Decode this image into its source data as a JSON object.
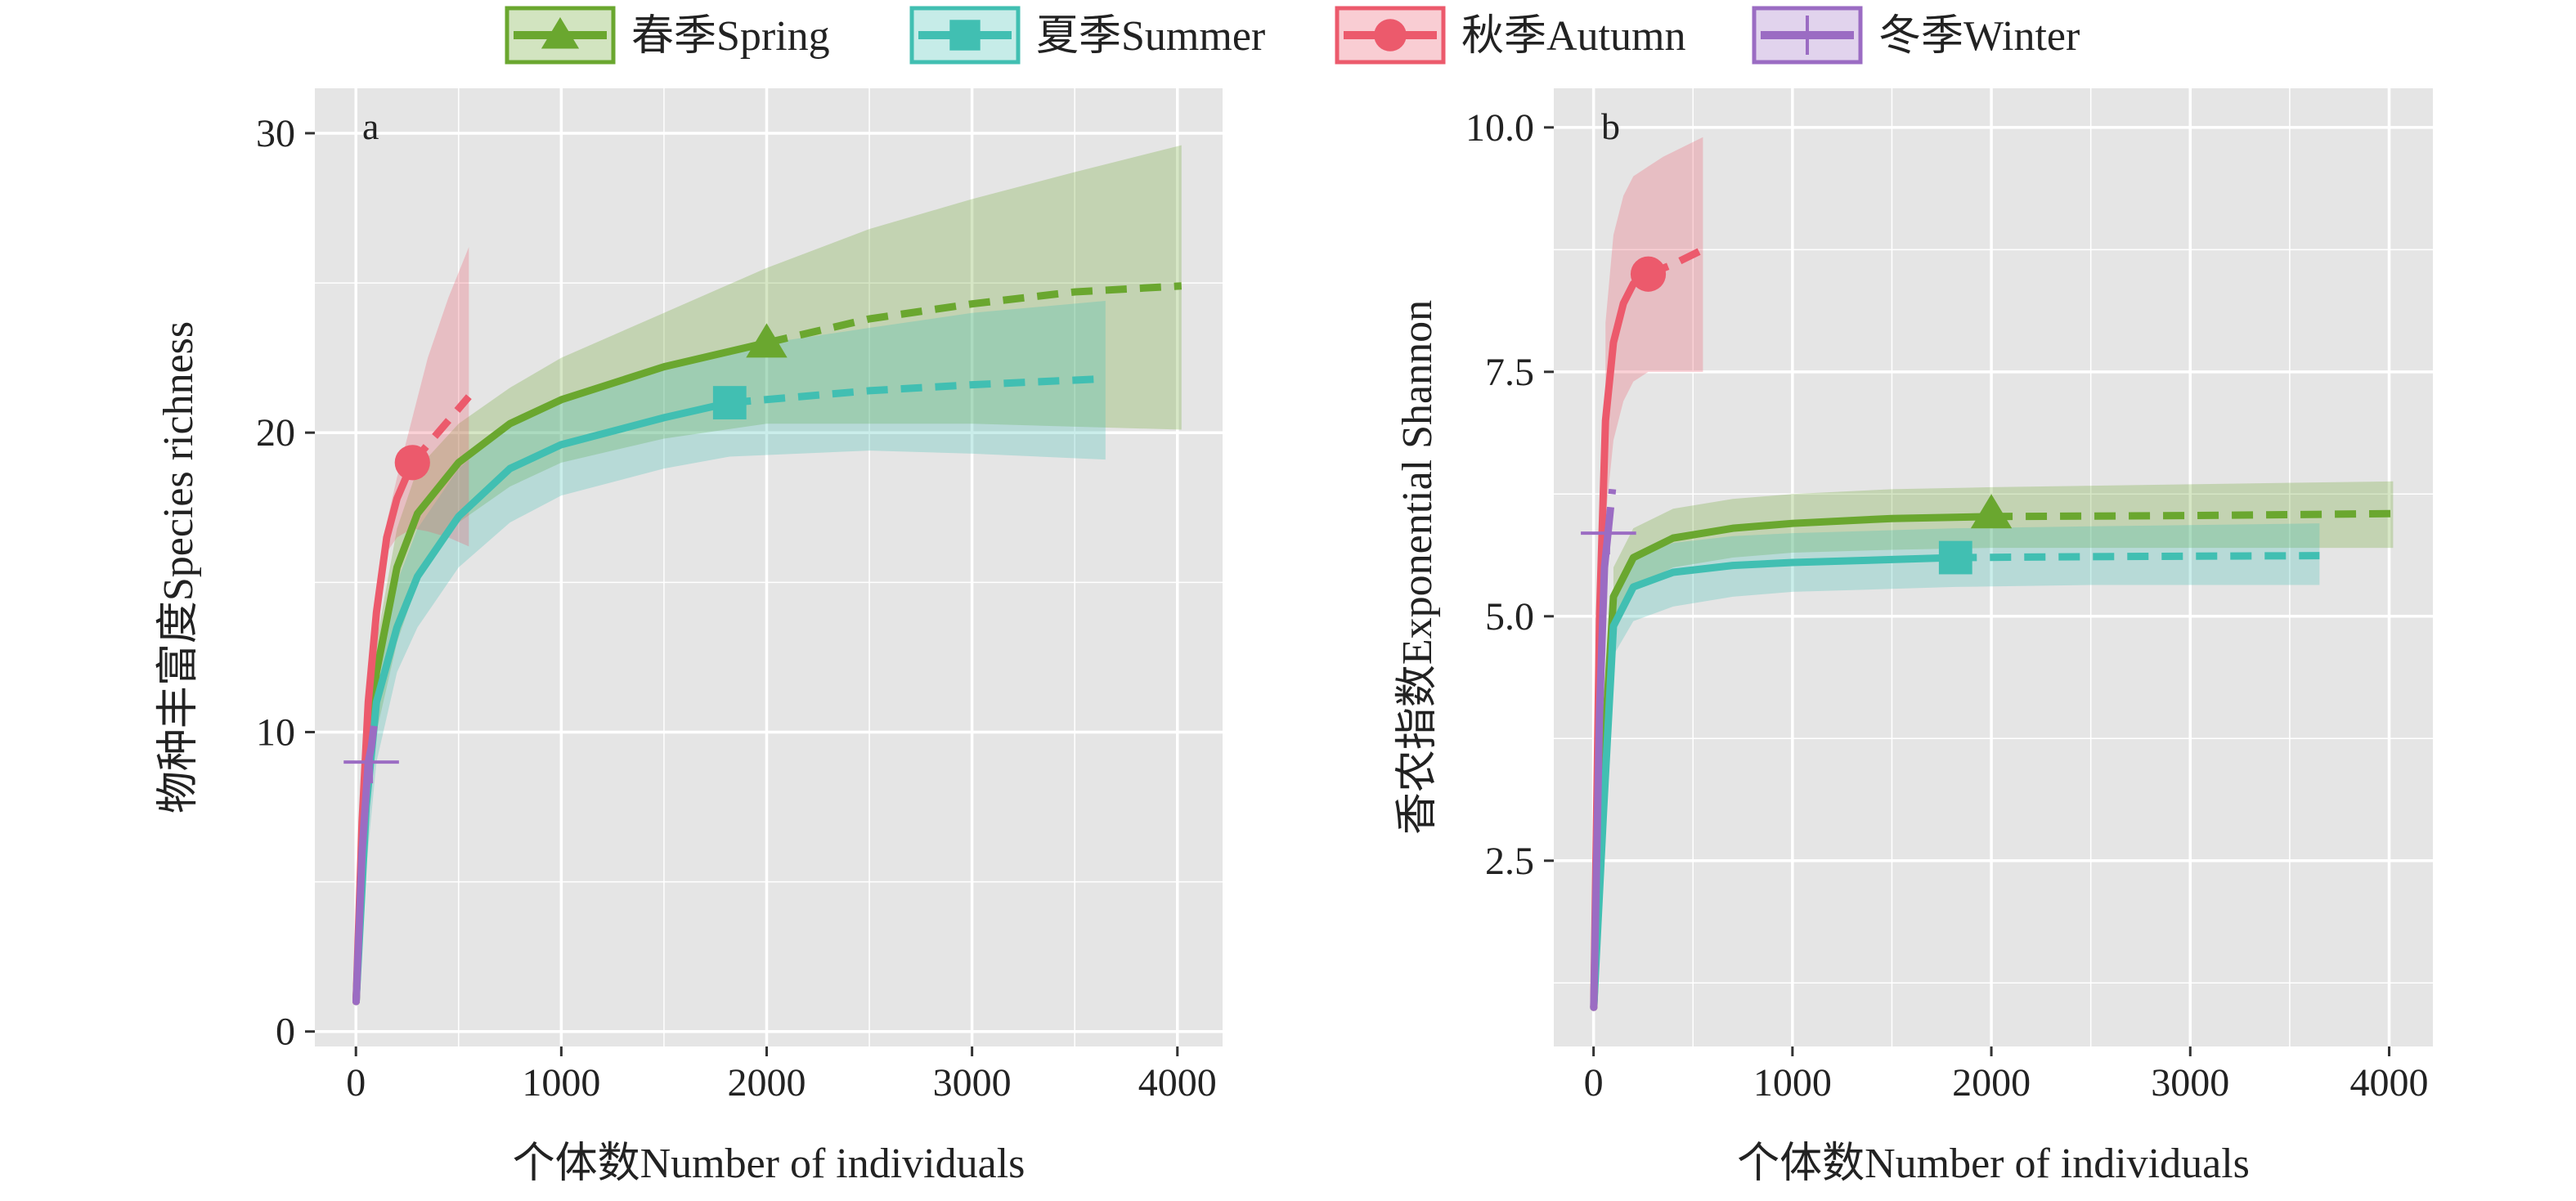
{
  "chart_data": [
    {
      "type": "line",
      "panel": "a",
      "xlabel": "个体数Number of individuals",
      "ylabel": "物种丰富度Species richness",
      "xlim": [
        -200,
        4220
      ],
      "ylim": [
        -0.5,
        31.5
      ],
      "xticks": [
        0,
        1000,
        2000,
        3000,
        4000
      ],
      "xtick_labels": [
        "0",
        "1000",
        "2000",
        "3000",
        "4000"
      ],
      "yticks": [
        0,
        10,
        20,
        30
      ],
      "ytick_labels": [
        "0",
        "10",
        "20",
        "30"
      ],
      "series": [
        {
          "name": "春季Spring",
          "key": "spring",
          "interpolated": [
            [
              1,
              1
            ],
            [
              50,
              9
            ],
            [
              100,
              12
            ],
            [
              200,
              15.5
            ],
            [
              300,
              17.3
            ],
            [
              500,
              19
            ],
            [
              750,
              20.3
            ],
            [
              1000,
              21.1
            ],
            [
              1500,
              22.2
            ],
            [
              2000,
              23
            ]
          ],
          "extrapolated": [
            [
              2000,
              23
            ],
            [
              2500,
              23.8
            ],
            [
              3000,
              24.3
            ],
            [
              3500,
              24.7
            ],
            [
              4020,
              24.9
            ]
          ],
          "band_x": [
            30,
            100,
            200,
            300,
            500,
            750,
            1000,
            1500,
            2000,
            2500,
            3000,
            3500,
            4020
          ],
          "band_lower": [
            5,
            10,
            13,
            15,
            17,
            18.2,
            19,
            19.8,
            20.3,
            20.3,
            20.3,
            20.2,
            20.1
          ],
          "band_upper": [
            7,
            13,
            16.8,
            18.8,
            20.3,
            21.5,
            22.5,
            24,
            25.5,
            26.8,
            27.8,
            28.7,
            29.6
          ],
          "observed": [
            2000,
            23
          ]
        },
        {
          "name": "夏季Summer",
          "key": "summer",
          "interpolated": [
            [
              1,
              1
            ],
            [
              50,
              7.5
            ],
            [
              100,
              11
            ],
            [
              200,
              13.5
            ],
            [
              300,
              15.2
            ],
            [
              500,
              17.2
            ],
            [
              750,
              18.8
            ],
            [
              1000,
              19.6
            ],
            [
              1500,
              20.5
            ],
            [
              1820,
              21
            ]
          ],
          "extrapolated": [
            [
              1820,
              21
            ],
            [
              2500,
              21.4
            ],
            [
              3000,
              21.6
            ],
            [
              3650,
              21.8
            ]
          ],
          "band_x": [
            30,
            100,
            200,
            300,
            500,
            750,
            1000,
            1500,
            1820,
            2500,
            3000,
            3650
          ],
          "band_lower": [
            4,
            9,
            12,
            13.5,
            15.5,
            17,
            17.9,
            18.8,
            19.2,
            19.4,
            19.3,
            19.1
          ],
          "band_upper": [
            6,
            12,
            15,
            16.8,
            18.8,
            20.3,
            21.2,
            22.3,
            22.8,
            23.5,
            24,
            24.4
          ],
          "observed": [
            1820,
            21
          ]
        },
        {
          "name": "秋季Autumn",
          "key": "autumn",
          "interpolated": [
            [
              1,
              1
            ],
            [
              30,
              7
            ],
            [
              60,
              11
            ],
            [
              100,
              14
            ],
            [
              150,
              16.5
            ],
            [
              200,
              17.8
            ],
            [
              275,
              19
            ]
          ],
          "extrapolated": [
            [
              275,
              19
            ],
            [
              400,
              20
            ],
            [
              550,
              21.2
            ]
          ],
          "band_x": [
            150,
            200,
            275,
            350,
            450,
            550
          ],
          "band_lower": [
            16,
            16.5,
            16.8,
            16.7,
            16.5,
            16.2
          ],
          "band_upper": [
            17,
            18.5,
            20.5,
            22.5,
            24.5,
            26.2
          ],
          "observed": [
            275,
            19
          ]
        },
        {
          "name": "冬季Winter",
          "key": "winter",
          "interpolated": [
            [
              1,
              1
            ],
            [
              30,
              6
            ],
            [
              60,
              9
            ],
            [
              75,
              9.5
            ]
          ],
          "extrapolated": [
            [
              75,
              9.5
            ],
            [
              95,
              10.6
            ]
          ],
          "band_x": [],
          "band_lower": [],
          "band_upper": [],
          "observed": [
            75,
            9
          ]
        }
      ]
    },
    {
      "type": "line",
      "panel": "b",
      "xlabel": "个体数Number of individuals",
      "ylabel": "香农指数Exponential Shannon",
      "xlim": [
        -200,
        4220
      ],
      "ylim": [
        0.6,
        10.4
      ],
      "xticks": [
        0,
        1000,
        2000,
        3000,
        4000
      ],
      "xtick_labels": [
        "0",
        "1000",
        "2000",
        "3000",
        "4000"
      ],
      "yticks": [
        2.5,
        5,
        7.5,
        10
      ],
      "ytick_labels": [
        "2.5",
        "5.0",
        "7.5",
        "10.0"
      ],
      "series": [
        {
          "name": "春季Spring",
          "key": "spring",
          "interpolated": [
            [
              1,
              1
            ],
            [
              50,
              3.5
            ],
            [
              100,
              5.2
            ],
            [
              200,
              5.6
            ],
            [
              400,
              5.8
            ],
            [
              700,
              5.9
            ],
            [
              1000,
              5.95
            ],
            [
              1500,
              6
            ],
            [
              2000,
              6.02
            ]
          ],
          "extrapolated": [
            [
              2000,
              6.02
            ],
            [
              3000,
              6.03
            ],
            [
              4020,
              6.05
            ]
          ],
          "band_x": [
            100,
            200,
            400,
            700,
            1000,
            1500,
            2000,
            3000,
            4020
          ],
          "band_lower": [
            5,
            5.3,
            5.5,
            5.6,
            5.65,
            5.68,
            5.7,
            5.7,
            5.7
          ],
          "band_upper": [
            5.5,
            5.9,
            6.1,
            6.2,
            6.25,
            6.3,
            6.32,
            6.35,
            6.38
          ],
          "observed": [
            2000,
            6.05
          ]
        },
        {
          "name": "夏季Summer",
          "key": "summer",
          "interpolated": [
            [
              1,
              1
            ],
            [
              50,
              3
            ],
            [
              100,
              4.9
            ],
            [
              200,
              5.3
            ],
            [
              400,
              5.45
            ],
            [
              700,
              5.52
            ],
            [
              1000,
              5.55
            ],
            [
              1500,
              5.58
            ],
            [
              1820,
              5.6
            ]
          ],
          "extrapolated": [
            [
              1820,
              5.6
            ],
            [
              2500,
              5.61
            ],
            [
              3650,
              5.62
            ]
          ],
          "band_x": [
            100,
            200,
            400,
            700,
            1000,
            1500,
            1820,
            2500,
            3650
          ],
          "band_lower": [
            4.6,
            4.95,
            5.1,
            5.2,
            5.25,
            5.28,
            5.3,
            5.32,
            5.32
          ],
          "band_upper": [
            5.2,
            5.6,
            5.75,
            5.82,
            5.85,
            5.88,
            5.9,
            5.92,
            5.95
          ],
          "observed": [
            1820,
            5.6
          ]
        },
        {
          "name": "秋季Autumn",
          "key": "autumn",
          "interpolated": [
            [
              1,
              1
            ],
            [
              30,
              5
            ],
            [
              60,
              7
            ],
            [
              100,
              7.8
            ],
            [
              150,
              8.2
            ],
            [
              200,
              8.4
            ],
            [
              275,
              8.5
            ]
          ],
          "extrapolated": [
            [
              275,
              8.5
            ],
            [
              400,
              8.6
            ],
            [
              550,
              8.75
            ]
          ],
          "band_x": [
            60,
            100,
            150,
            200,
            275,
            350,
            450,
            550
          ],
          "band_lower": [
            6,
            6.8,
            7.2,
            7.4,
            7.5,
            7.5,
            7.5,
            7.5
          ],
          "band_upper": [
            8,
            8.9,
            9.3,
            9.5,
            9.6,
            9.7,
            9.8,
            9.9
          ],
          "observed": [
            275,
            8.5
          ]
        },
        {
          "name": "冬季Winter",
          "key": "winter",
          "interpolated": [
            [
              1,
              1
            ],
            [
              30,
              4
            ],
            [
              55,
              5.5
            ],
            [
              75,
              5.9
            ]
          ],
          "extrapolated": [
            [
              75,
              5.9
            ],
            [
              95,
              6.3
            ]
          ],
          "band_x": [],
          "band_lower": [],
          "band_upper": [],
          "observed": [
            75,
            5.85
          ]
        }
      ]
    }
  ],
  "legend": [
    {
      "key": "spring",
      "label": "春季Spring",
      "marker": "triangle"
    },
    {
      "key": "summer",
      "label": "夏季Summer",
      "marker": "square"
    },
    {
      "key": "autumn",
      "label": "秋季Autumn",
      "marker": "circle"
    },
    {
      "key": "winter",
      "label": "冬季Winter",
      "marker": "plus"
    }
  ],
  "colors": {
    "spring": "#6aa72f",
    "summer": "#41bfb2",
    "autumn": "#ec5a6c",
    "winter": "#9b6cc3",
    "panel_bg": "#e5e5e5",
    "grid": "#ffffff"
  }
}
